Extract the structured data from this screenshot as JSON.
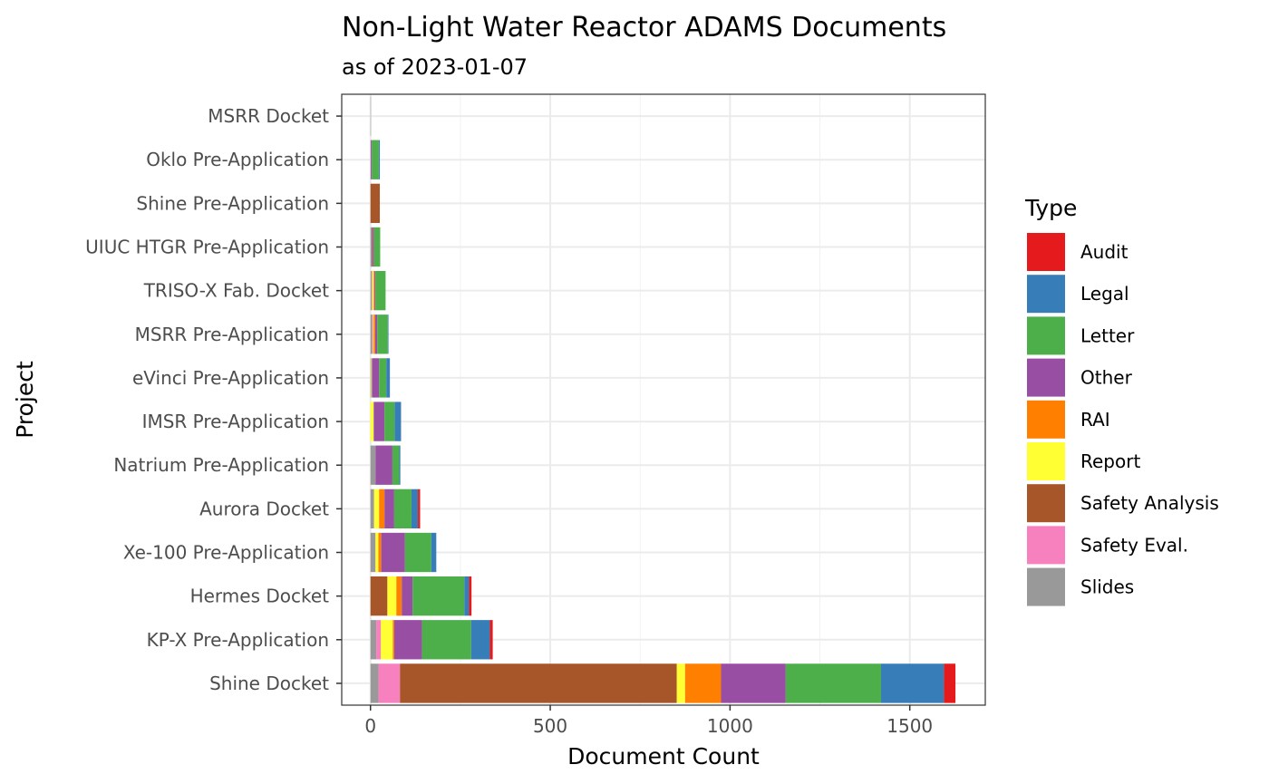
{
  "chart_data": {
    "type": "bar",
    "orientation": "horizontal",
    "stacked": true,
    "title": "Non-Light Water Reactor ADAMS Documents",
    "subtitle": "as of 2023-01-07",
    "xlabel": "Document Count",
    "ylabel": "Project",
    "xlim": [
      -80,
      1710
    ],
    "xticks": [
      0,
      500,
      1000,
      1500
    ],
    "xtick_labels": [
      "0",
      "500",
      "1000",
      "1500"
    ],
    "grid": true,
    "legend_title": "Type",
    "legend_position": "right",
    "categories": [
      "MSRR Docket",
      "Oklo Pre-Application",
      "Shine Pre-Application",
      "UIUC HTGR Pre-Application",
      "TRISO-X Fab. Docket",
      "MSRR Pre-Application",
      "eVinci Pre-Application",
      "IMSR Pre-Application",
      "Natrium Pre-Application",
      "Aurora Docket",
      "Xe-100 Pre-Application",
      "Hermes Docket",
      "KP-X Pre-Application",
      "Shine Docket"
    ],
    "series": [
      {
        "name": "Slides",
        "color": "#999999",
        "values": [
          1,
          1,
          0,
          4,
          3,
          5,
          2,
          0,
          14,
          10,
          14,
          0,
          16,
          22
        ]
      },
      {
        "name": "Safety Eval.",
        "color": "#F781BF",
        "values": [
          0,
          0,
          0,
          0,
          2,
          2,
          0,
          0,
          0,
          0,
          0,
          0,
          13,
          60
        ]
      },
      {
        "name": "Safety Analysis",
        "color": "#A65628",
        "values": [
          0,
          0,
          26,
          2,
          0,
          0,
          0,
          0,
          0,
          0,
          0,
          47,
          0,
          770
        ]
      },
      {
        "name": "Report",
        "color": "#FFFF33",
        "values": [
          0,
          0,
          0,
          0,
          4,
          2,
          2,
          9,
          0,
          14,
          8,
          25,
          33,
          23
        ]
      },
      {
        "name": "RAI",
        "color": "#FF7F00",
        "values": [
          0,
          0,
          0,
          0,
          2,
          4,
          0,
          0,
          0,
          15,
          8,
          15,
          4,
          100
        ]
      },
      {
        "name": "Other",
        "color": "#984EA3",
        "values": [
          0,
          3,
          0,
          4,
          3,
          6,
          20,
          30,
          47,
          27,
          66,
          30,
          77,
          180
        ]
      },
      {
        "name": "Letter",
        "color": "#4DAF4A",
        "values": [
          0,
          19,
          0,
          17,
          28,
          29,
          20,
          28,
          19,
          48,
          73,
          144,
          137,
          265
        ]
      },
      {
        "name": "Legal",
        "color": "#377EB8",
        "values": [
          0,
          3,
          0,
          0,
          0,
          2,
          10,
          18,
          3,
          18,
          14,
          13,
          52,
          175
        ]
      },
      {
        "name": "Audit",
        "color": "#E41A1C",
        "values": [
          0,
          0,
          0,
          0,
          0,
          0,
          0,
          0,
          0,
          6,
          0,
          7,
          8,
          32
        ]
      }
    ],
    "legend_order": [
      "Audit",
      "Legal",
      "Letter",
      "Other",
      "RAI",
      "Report",
      "Safety Analysis",
      "Safety Eval.",
      "Slides"
    ]
  }
}
